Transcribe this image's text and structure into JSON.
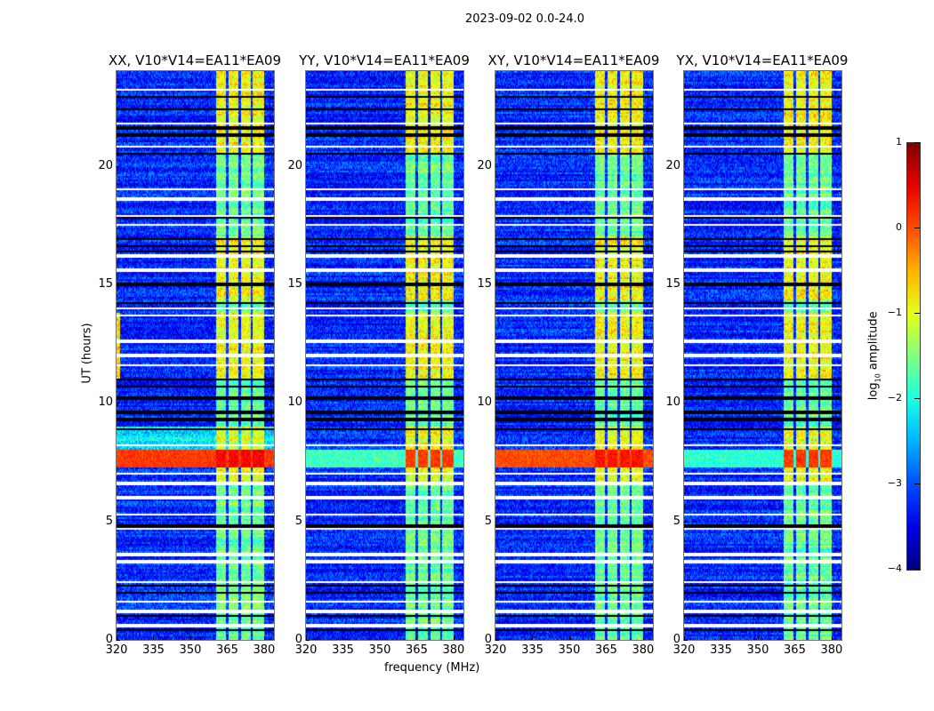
{
  "chart_data": {
    "type": "heatmap",
    "title": "2023-09-02 0.0-24.0",
    "xlabel": "frequency (MHz)",
    "ylabel": "UT (hours)",
    "xlim": [
      320,
      384
    ],
    "ylim": [
      0,
      24
    ],
    "xticks": [
      320,
      335,
      350,
      365,
      380
    ],
    "yticks": [
      0,
      5,
      10,
      15,
      20
    ],
    "colorbar": {
      "label": "log10 amplitude",
      "label_main": "log",
      "label_sub": "10",
      "label_rest": " amplitude",
      "colormap": "jet",
      "range": [
        -4,
        1
      ],
      "ticks": [
        1,
        0,
        -1,
        -2,
        -3,
        -4
      ],
      "tick_labels": [
        "1",
        "0",
        "−1",
        "−2",
        "−3",
        "−4"
      ]
    },
    "background_level": -3.2,
    "rfi_subbands_mhz": [
      [
        360.5,
        364.5
      ],
      [
        365.5,
        369.5
      ],
      [
        370.5,
        374.5
      ],
      [
        375.5,
        380
      ]
    ],
    "flagged_rows_hours": [
      23.2,
      21.8,
      20.8,
      19.0,
      18.6,
      17.9,
      17.5,
      16.2,
      15.6,
      14.0,
      13.7,
      12.6,
      12.0,
      11.6,
      8.2,
      7.0,
      6.6,
      6.0,
      5.3,
      4.7,
      3.6,
      3.3,
      2.45,
      1.6,
      1.2,
      0.6
    ],
    "low_rows_hours": [
      22.9,
      22.4,
      21.6,
      21.3,
      20.5,
      17.8,
      16.9,
      16.6,
      16.4,
      15.0,
      14.2,
      11.0,
      10.7,
      10.2,
      9.6,
      9.3,
      8.9,
      4.8,
      2.3,
      2.0,
      1.0,
      0.4
    ],
    "bright_periods_hours": [
      [
        11.0,
        13.8
      ],
      [
        14.3,
        17.0
      ],
      [
        20.5,
        24.0
      ]
    ],
    "high_amplitude_period_hours": [
      7.3,
      8.0
    ],
    "panels": [
      {
        "title": "XX, V10*V14=EA11*EA09",
        "broadband_high": true,
        "broadband_level": 0.1
      },
      {
        "title": "YY, V10*V14=EA11*EA09",
        "broadband_high": false,
        "broadband_level": -1.8
      },
      {
        "title": "XY, V10*V14=EA11*EA09",
        "broadband_high": true,
        "broadband_level": 0.0
      },
      {
        "title": "YX, V10*V14=EA11*EA09",
        "broadband_high": false,
        "broadband_level": -1.9
      }
    ]
  }
}
